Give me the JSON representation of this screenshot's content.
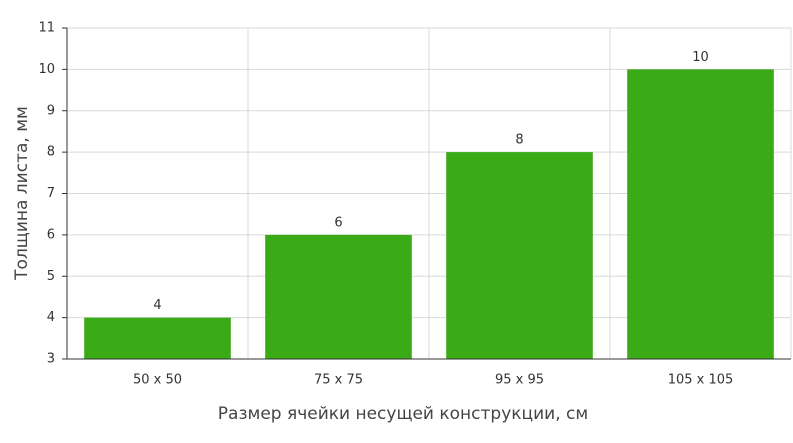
{
  "chart_data": {
    "type": "bar",
    "x_label": "Размер ячейки несущей конструкции, см",
    "y_label": "Толщина листа, мм",
    "categories": [
      "50 x 50",
      "75 x 75",
      "95 x 95",
      "105 x 105"
    ],
    "values": [
      4,
      6,
      8,
      10
    ],
    "color": "#3aaa17",
    "ylim": [
      3,
      11
    ],
    "yticks": [
      3,
      4,
      5,
      6,
      7,
      8,
      9,
      10,
      11
    ],
    "grid": true
  }
}
